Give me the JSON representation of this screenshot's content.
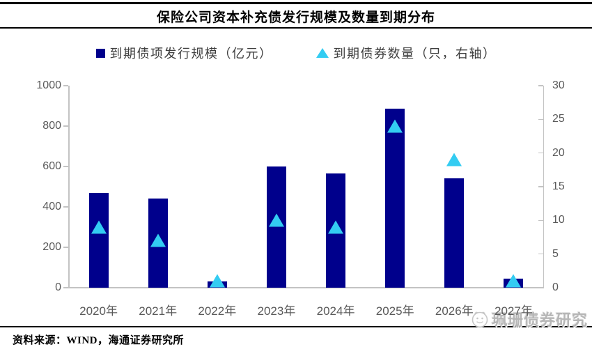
{
  "header": {
    "title": "保险公司资本补充债发行规模及数量到期分布"
  },
  "chart_data": {
    "type": "bar",
    "subtype": "combo-bar-and-triangle-markers",
    "categories": [
      "2020年",
      "2021年",
      "2022年",
      "2023年",
      "2024年",
      "2025年",
      "2026年",
      "2027年"
    ],
    "series": [
      {
        "name": "到期债项发行规模（亿元）",
        "type": "bar",
        "axis": "left",
        "color": "#00008c",
        "values": [
          470,
          440,
          30,
          600,
          565,
          885,
          540,
          45
        ]
      },
      {
        "name": "到期债券数量（只，右轴）",
        "type": "scatter",
        "marker": "triangle",
        "axis": "right",
        "color": "#33ccf2",
        "values": [
          9,
          7,
          1,
          10,
          9,
          24,
          19,
          1
        ]
      }
    ],
    "left_axis": {
      "min": 0,
      "max": 1000,
      "ticks": [
        0,
        200,
        400,
        600,
        800,
        1000
      ]
    },
    "right_axis": {
      "min": 0,
      "max": 30,
      "ticks": [
        0,
        5,
        10,
        15,
        20,
        25,
        30
      ]
    },
    "grid": false,
    "legend_position": "top"
  },
  "footer": {
    "source": "资料来源：WIND，海通证券研究所"
  },
  "watermark": {
    "text": "珮珊债券研究"
  }
}
